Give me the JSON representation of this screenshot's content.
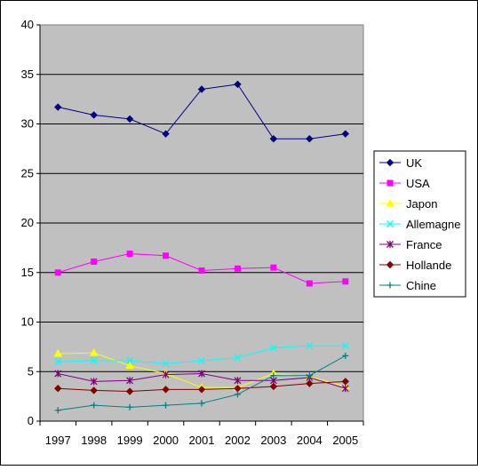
{
  "chart_data": {
    "type": "line",
    "title": "",
    "xlabel": "",
    "ylabel": "",
    "categories": [
      "1997",
      "1998",
      "1999",
      "2000",
      "2001",
      "2002",
      "2003",
      "2004",
      "2005"
    ],
    "ylim": [
      0,
      40
    ],
    "yticks": [
      0,
      5,
      10,
      15,
      20,
      25,
      30,
      35,
      40
    ],
    "grid": true,
    "plot_background": "#c0c0c0",
    "legend_position": "right",
    "series": [
      {
        "name": "UK",
        "color": "#000080",
        "marker": "diamond",
        "values": [
          31.7,
          30.9,
          30.5,
          29.0,
          33.5,
          34.0,
          28.5,
          28.5,
          29.0
        ]
      },
      {
        "name": "USA",
        "color": "#ff00ff",
        "marker": "square",
        "values": [
          15.0,
          16.1,
          16.9,
          16.7,
          15.2,
          15.4,
          15.5,
          13.9,
          14.1
        ]
      },
      {
        "name": "Japon",
        "color": "#ffff00",
        "marker": "triangle",
        "values": [
          6.8,
          6.9,
          5.6,
          4.8,
          3.4,
          3.4,
          4.8,
          4.5,
          3.5
        ]
      },
      {
        "name": "Allemagne",
        "color": "#00ffff",
        "marker": "x",
        "values": [
          6.0,
          6.1,
          6.1,
          5.8,
          6.1,
          6.4,
          7.4,
          7.6,
          7.6
        ]
      },
      {
        "name": "France",
        "color": "#800080",
        "marker": "star",
        "values": [
          4.8,
          4.0,
          4.1,
          4.7,
          4.8,
          4.1,
          4.1,
          4.4,
          3.3
        ]
      },
      {
        "name": "Hollande",
        "color": "#800000",
        "marker": "diamond",
        "values": [
          3.3,
          3.1,
          3.0,
          3.2,
          3.2,
          3.3,
          3.5,
          3.8,
          4.0
        ]
      },
      {
        "name": "Chine",
        "color": "#008080",
        "marker": "plus",
        "values": [
          1.1,
          1.6,
          1.4,
          1.6,
          1.8,
          2.7,
          4.6,
          4.6,
          6.6
        ]
      }
    ]
  }
}
